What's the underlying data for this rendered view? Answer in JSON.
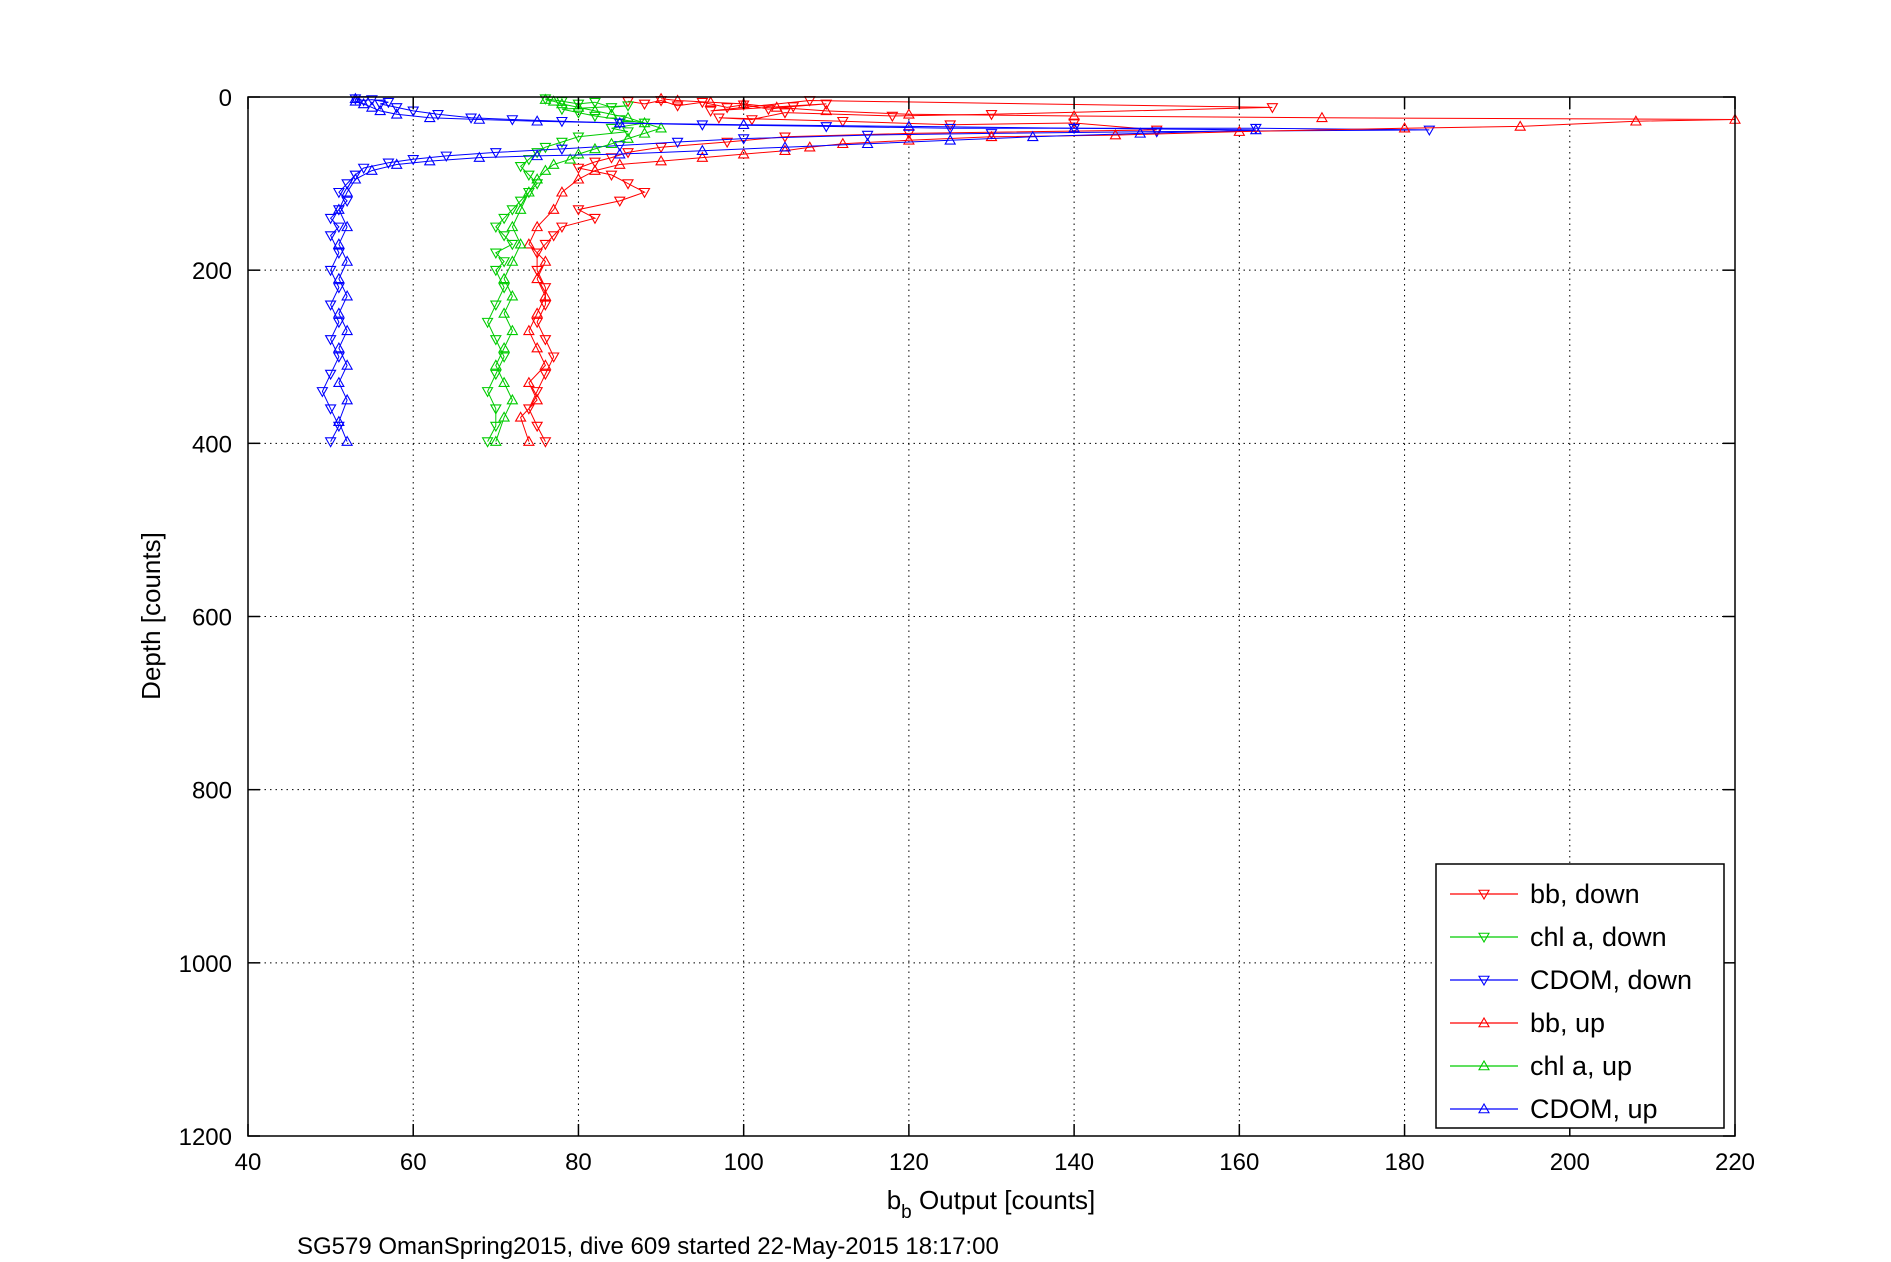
{
  "chart_data": {
    "type": "scatter",
    "title": "",
    "xlabel": {
      "base": "b",
      "sub": "b",
      "rest": " Output [counts]"
    },
    "ylabel": "Depth [counts]",
    "xlim": [
      40,
      220
    ],
    "ylim": [
      1200,
      0
    ],
    "y_reversed": true,
    "grid": true,
    "legend_position": "bottom-right",
    "x_ticks": [
      "40",
      "60",
      "80",
      "100",
      "120",
      "140",
      "160",
      "180",
      "200",
      "220"
    ],
    "y_ticks": [
      "0",
      "200",
      "400",
      "600",
      "800",
      "1000",
      "1200"
    ],
    "caption": "SG579 OmanSpring2015, dive 609 started 22-May-2015 18:17:00",
    "series": [
      {
        "name": "bb, down",
        "color": "#ff0000",
        "marker": "triangle-down",
        "points": [
          [
            86,
            5
          ],
          [
            88,
            8
          ],
          [
            90,
            4
          ],
          [
            92,
            10
          ],
          [
            95,
            6
          ],
          [
            98,
            12
          ],
          [
            100,
            9
          ],
          [
            103,
            14
          ],
          [
            106,
            11
          ],
          [
            110,
            8
          ],
          [
            96,
            16
          ],
          [
            108,
            4
          ],
          [
            164,
            12
          ],
          [
            130,
            20
          ],
          [
            118,
            22
          ],
          [
            105,
            18
          ],
          [
            101,
            26
          ],
          [
            97,
            24
          ],
          [
            112,
            28
          ],
          [
            125,
            32
          ],
          [
            140,
            30
          ],
          [
            150,
            38
          ],
          [
            120,
            42
          ],
          [
            105,
            46
          ],
          [
            98,
            52
          ],
          [
            90,
            58
          ],
          [
            86,
            64
          ],
          [
            84,
            70
          ],
          [
            82,
            75
          ],
          [
            80,
            82
          ],
          [
            84,
            90
          ],
          [
            86,
            100
          ],
          [
            88,
            110
          ],
          [
            85,
            120
          ],
          [
            80,
            130
          ],
          [
            82,
            140
          ],
          [
            78,
            150
          ],
          [
            77,
            160
          ],
          [
            76,
            170
          ],
          [
            75,
            180
          ],
          [
            75,
            200
          ],
          [
            76,
            220
          ],
          [
            76,
            240
          ],
          [
            75,
            260
          ],
          [
            76,
            280
          ],
          [
            77,
            300
          ],
          [
            76,
            320
          ],
          [
            75,
            340
          ],
          [
            74,
            360
          ],
          [
            75,
            380
          ],
          [
            76,
            398
          ]
        ]
      },
      {
        "name": "chl a, down",
        "color": "#00cc00",
        "marker": "triangle-down",
        "points": [
          [
            76,
            2
          ],
          [
            78,
            5
          ],
          [
            80,
            8
          ],
          [
            82,
            6
          ],
          [
            84,
            12
          ],
          [
            86,
            10
          ],
          [
            78,
            14
          ],
          [
            80,
            18
          ],
          [
            82,
            22
          ],
          [
            85,
            26
          ],
          [
            88,
            30
          ],
          [
            84,
            36
          ],
          [
            86,
            40
          ],
          [
            80,
            46
          ],
          [
            78,
            52
          ],
          [
            76,
            58
          ],
          [
            75,
            64
          ],
          [
            74,
            72
          ],
          [
            73,
            80
          ],
          [
            74,
            90
          ],
          [
            75,
            100
          ],
          [
            74,
            110
          ],
          [
            73,
            120
          ],
          [
            72,
            130
          ],
          [
            71,
            140
          ],
          [
            70,
            150
          ],
          [
            71,
            160
          ],
          [
            72,
            170
          ],
          [
            70,
            180
          ],
          [
            71,
            190
          ],
          [
            70,
            200
          ],
          [
            71,
            220
          ],
          [
            70,
            240
          ],
          [
            69,
            260
          ],
          [
            70,
            280
          ],
          [
            71,
            300
          ],
          [
            70,
            320
          ],
          [
            69,
            340
          ],
          [
            70,
            360
          ],
          [
            70,
            380
          ],
          [
            69,
            398
          ]
        ]
      },
      {
        "name": "CDOM, down",
        "color": "#0000ff",
        "marker": "triangle-down",
        "points": [
          [
            53,
            2
          ],
          [
            54,
            4
          ],
          [
            55,
            3
          ],
          [
            57,
            6
          ],
          [
            56,
            8
          ],
          [
            58,
            12
          ],
          [
            60,
            16
          ],
          [
            63,
            20
          ],
          [
            67,
            24
          ],
          [
            72,
            26
          ],
          [
            78,
            28
          ],
          [
            85,
            30
          ],
          [
            95,
            32
          ],
          [
            110,
            34
          ],
          [
            125,
            36
          ],
          [
            140,
            36
          ],
          [
            162,
            36
          ],
          [
            183,
            38
          ],
          [
            150,
            40
          ],
          [
            130,
            42
          ],
          [
            115,
            44
          ],
          [
            100,
            48
          ],
          [
            92,
            52
          ],
          [
            85,
            56
          ],
          [
            78,
            60
          ],
          [
            70,
            64
          ],
          [
            64,
            68
          ],
          [
            60,
            72
          ],
          [
            57,
            76
          ],
          [
            54,
            82
          ],
          [
            53,
            90
          ],
          [
            52,
            100
          ],
          [
            51,
            110
          ],
          [
            52,
            120
          ],
          [
            51,
            130
          ],
          [
            50,
            140
          ],
          [
            51,
            150
          ],
          [
            50,
            160
          ],
          [
            51,
            180
          ],
          [
            50,
            200
          ],
          [
            51,
            220
          ],
          [
            50,
            240
          ],
          [
            51,
            260
          ],
          [
            50,
            280
          ],
          [
            51,
            300
          ],
          [
            50,
            320
          ],
          [
            49,
            340
          ],
          [
            50,
            360
          ],
          [
            51,
            380
          ],
          [
            50,
            398
          ]
        ]
      },
      {
        "name": "bb, up",
        "color": "#ff0000",
        "marker": "triangle-up",
        "points": [
          [
            74,
            398
          ],
          [
            73,
            370
          ],
          [
            75,
            350
          ],
          [
            74,
            330
          ],
          [
            76,
            310
          ],
          [
            75,
            290
          ],
          [
            74,
            270
          ],
          [
            75,
            250
          ],
          [
            76,
            230
          ],
          [
            75,
            210
          ],
          [
            76,
            190
          ],
          [
            74,
            170
          ],
          [
            75,
            150
          ],
          [
            77,
            130
          ],
          [
            78,
            110
          ],
          [
            80,
            95
          ],
          [
            82,
            85
          ],
          [
            85,
            78
          ],
          [
            90,
            74
          ],
          [
            95,
            70
          ],
          [
            100,
            66
          ],
          [
            105,
            62
          ],
          [
            108,
            58
          ],
          [
            112,
            54
          ],
          [
            120,
            50
          ],
          [
            130,
            46
          ],
          [
            145,
            44
          ],
          [
            160,
            40
          ],
          [
            180,
            36
          ],
          [
            194,
            34
          ],
          [
            208,
            28
          ],
          [
            220,
            26
          ],
          [
            170,
            24
          ],
          [
            140,
            22
          ],
          [
            120,
            20
          ],
          [
            110,
            16
          ],
          [
            104,
            12
          ],
          [
            100,
            8
          ],
          [
            96,
            6
          ],
          [
            92,
            4
          ],
          [
            90,
            2
          ]
        ]
      },
      {
        "name": "chl a, up",
        "color": "#00cc00",
        "marker": "triangle-up",
        "points": [
          [
            70,
            398
          ],
          [
            71,
            370
          ],
          [
            72,
            350
          ],
          [
            71,
            330
          ],
          [
            70,
            310
          ],
          [
            71,
            290
          ],
          [
            72,
            270
          ],
          [
            71,
            250
          ],
          [
            72,
            230
          ],
          [
            71,
            210
          ],
          [
            72,
            190
          ],
          [
            73,
            170
          ],
          [
            72,
            150
          ],
          [
            73,
            130
          ],
          [
            74,
            110
          ],
          [
            75,
            95
          ],
          [
            76,
            85
          ],
          [
            77,
            78
          ],
          [
            79,
            72
          ],
          [
            80,
            66
          ],
          [
            82,
            60
          ],
          [
            84,
            54
          ],
          [
            86,
            48
          ],
          [
            88,
            42
          ],
          [
            90,
            36
          ],
          [
            88,
            30
          ],
          [
            86,
            24
          ],
          [
            84,
            20
          ],
          [
            82,
            16
          ],
          [
            80,
            12
          ],
          [
            78,
            8
          ],
          [
            77,
            5
          ],
          [
            76,
            3
          ]
        ]
      },
      {
        "name": "CDOM, up",
        "color": "#0000ff",
        "marker": "triangle-up",
        "points": [
          [
            52,
            398
          ],
          [
            51,
            375
          ],
          [
            52,
            350
          ],
          [
            51,
            330
          ],
          [
            52,
            310
          ],
          [
            51,
            290
          ],
          [
            52,
            270
          ],
          [
            51,
            250
          ],
          [
            52,
            230
          ],
          [
            51,
            210
          ],
          [
            52,
            190
          ],
          [
            51,
            170
          ],
          [
            52,
            150
          ],
          [
            51,
            130
          ],
          [
            52,
            110
          ],
          [
            53,
            95
          ],
          [
            55,
            85
          ],
          [
            58,
            78
          ],
          [
            62,
            74
          ],
          [
            68,
            70
          ],
          [
            75,
            68
          ],
          [
            85,
            66
          ],
          [
            95,
            62
          ],
          [
            105,
            58
          ],
          [
            115,
            54
          ],
          [
            125,
            50
          ],
          [
            135,
            46
          ],
          [
            148,
            42
          ],
          [
            162,
            38
          ],
          [
            140,
            36
          ],
          [
            120,
            34
          ],
          [
            100,
            32
          ],
          [
            85,
            30
          ],
          [
            75,
            28
          ],
          [
            68,
            26
          ],
          [
            62,
            24
          ],
          [
            58,
            20
          ],
          [
            56,
            16
          ],
          [
            55,
            12
          ],
          [
            54,
            8
          ],
          [
            53,
            5
          ],
          [
            53,
            2
          ]
        ]
      }
    ]
  }
}
